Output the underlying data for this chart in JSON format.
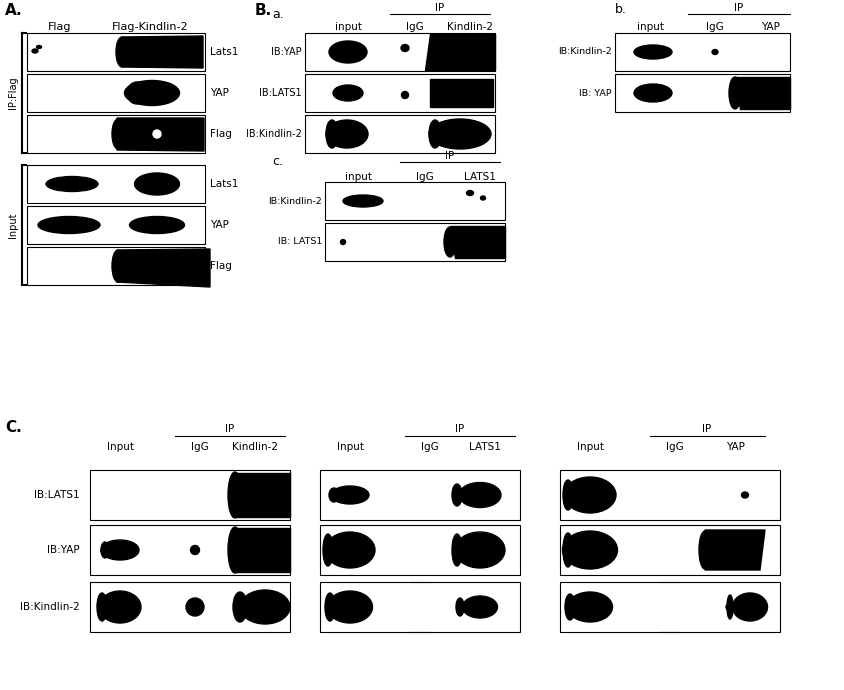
{
  "fig_width": 8.44,
  "fig_height": 6.9,
  "bg_color": "#ffffff",
  "panel_A": {
    "label": "A."
  },
  "panel_B": {
    "label": "B.",
    "sub_a": "a.",
    "sub_b": "b.",
    "sub_c": "c."
  },
  "panel_C": {
    "label": "C."
  }
}
